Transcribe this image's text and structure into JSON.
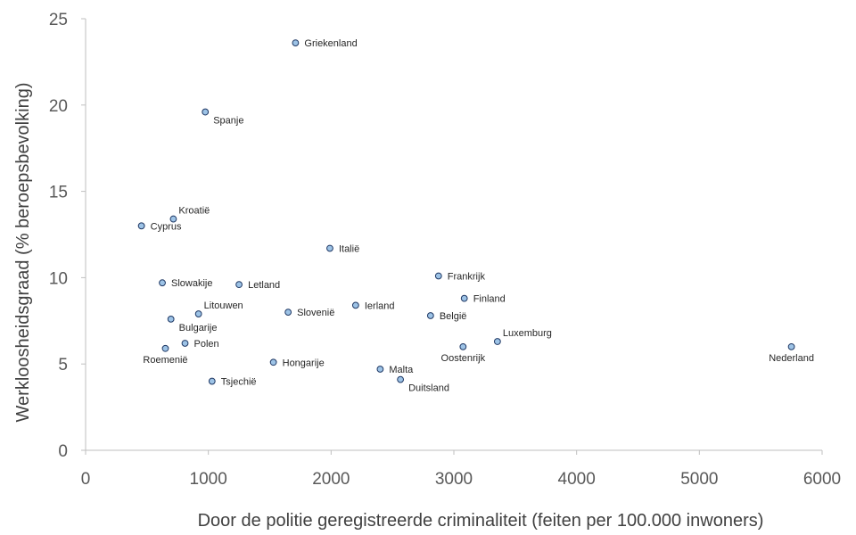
{
  "chart_data": {
    "type": "scatter",
    "title": "",
    "xlabel": "Door de politie geregistreerde criminaliteit (feiten per 100.000 inwoners)",
    "ylabel": "Werkloosheidsgraad (% beroepsbevolking)",
    "xlim": [
      0,
      6000
    ],
    "ylim": [
      0,
      25
    ],
    "x_ticks": [
      "0",
      "1000",
      "2000",
      "3000",
      "4000",
      "5000",
      "6000"
    ],
    "y_ticks": [
      "0",
      "5",
      "10",
      "15",
      "20",
      "25"
    ],
    "grid": false,
    "legend": "none",
    "marker_fill": "#9dc3e6",
    "marker_edge": "#1f3864",
    "points": [
      {
        "name": "Griekenland",
        "x": 1710,
        "y": 23.6,
        "anchor": "right"
      },
      {
        "name": "Spanje",
        "x": 975,
        "y": 19.6,
        "anchor": "right-below"
      },
      {
        "name": "Kroatië",
        "x": 715,
        "y": 13.4,
        "anchor": "right-above"
      },
      {
        "name": "Cyprus",
        "x": 455,
        "y": 13.0,
        "anchor": "right"
      },
      {
        "name": "Italië",
        "x": 1990,
        "y": 11.7,
        "anchor": "right"
      },
      {
        "name": "Frankrijk",
        "x": 2875,
        "y": 10.1,
        "anchor": "right"
      },
      {
        "name": "Slowakije",
        "x": 625,
        "y": 9.7,
        "anchor": "right"
      },
      {
        "name": "Letland",
        "x": 1250,
        "y": 9.6,
        "anchor": "right"
      },
      {
        "name": "Finland",
        "x": 3085,
        "y": 8.8,
        "anchor": "right"
      },
      {
        "name": "Ierland",
        "x": 2200,
        "y": 8.4,
        "anchor": "right"
      },
      {
        "name": "Slovenië",
        "x": 1650,
        "y": 8.0,
        "anchor": "right"
      },
      {
        "name": "Litouwen",
        "x": 920,
        "y": 7.9,
        "anchor": "right-above"
      },
      {
        "name": "België",
        "x": 2810,
        "y": 7.8,
        "anchor": "right"
      },
      {
        "name": "Bulgarije",
        "x": 695,
        "y": 7.6,
        "anchor": "right-below"
      },
      {
        "name": "Luxemburg",
        "x": 3355,
        "y": 6.3,
        "anchor": "right-above"
      },
      {
        "name": "Polen",
        "x": 810,
        "y": 6.2,
        "anchor": "right"
      },
      {
        "name": "Oostenrijk",
        "x": 3075,
        "y": 6.0,
        "anchor": "below"
      },
      {
        "name": "Nederland",
        "x": 5750,
        "y": 6.0,
        "anchor": "below"
      },
      {
        "name": "Roemenië",
        "x": 650,
        "y": 5.9,
        "anchor": "below"
      },
      {
        "name": "Hongarije",
        "x": 1530,
        "y": 5.1,
        "anchor": "right"
      },
      {
        "name": "Malta",
        "x": 2400,
        "y": 4.7,
        "anchor": "right"
      },
      {
        "name": "Duitsland",
        "x": 2565,
        "y": 4.1,
        "anchor": "right-below"
      },
      {
        "name": "Tsjechië",
        "x": 1030,
        "y": 4.0,
        "anchor": "right"
      }
    ]
  }
}
